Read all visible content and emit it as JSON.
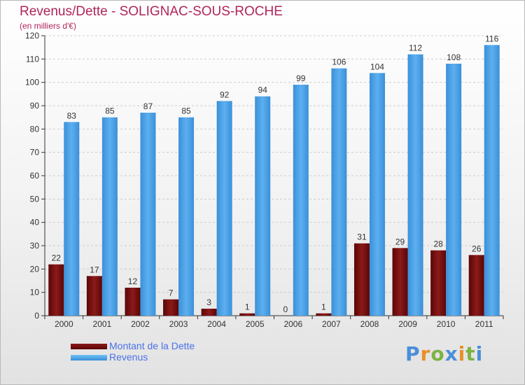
{
  "header": {
    "title": "Revenus/Dette - SOLIGNAC-SOUS-ROCHE",
    "subtitle": "(en milliers d'€)"
  },
  "legend": {
    "items": [
      {
        "label": "Montant de la Dette",
        "color": "#7a0f0f"
      },
      {
        "label": "Revenus",
        "color": "#4aa0e6"
      }
    ]
  },
  "logo": {
    "text": "Proxiti",
    "letter_colors": [
      "#4a8fd8",
      "#e8902a",
      "#7cb342",
      "#4a8fd8",
      "#e8902a",
      "#7cb342",
      "#4a8fd8"
    ]
  },
  "colors": {
    "title": "#b0245a",
    "dette": "#7a0f0f",
    "revenus": "#4aa0e6",
    "grid": "#cccccc"
  },
  "chart_data": {
    "type": "bar",
    "title": "Revenus/Dette - SOLIGNAC-SOUS-ROCHE",
    "subtitle": "(en milliers d'€)",
    "categories": [
      "2000",
      "2001",
      "2002",
      "2003",
      "2004",
      "2005",
      "2006",
      "2007",
      "2008",
      "2009",
      "2010",
      "2011"
    ],
    "series": [
      {
        "name": "Montant de la Dette",
        "values": [
          22,
          17,
          12,
          7,
          3,
          1,
          0,
          1,
          31,
          29,
          28,
          26
        ]
      },
      {
        "name": "Revenus",
        "values": [
          83,
          85,
          87,
          85,
          92,
          94,
          99,
          106,
          104,
          112,
          108,
          116
        ]
      }
    ],
    "ylim": [
      0,
      120
    ],
    "yticks": [
      0,
      10,
      20,
      30,
      40,
      50,
      60,
      70,
      80,
      90,
      100,
      110,
      120
    ],
    "grid": true,
    "legend_position": "bottom-left"
  }
}
